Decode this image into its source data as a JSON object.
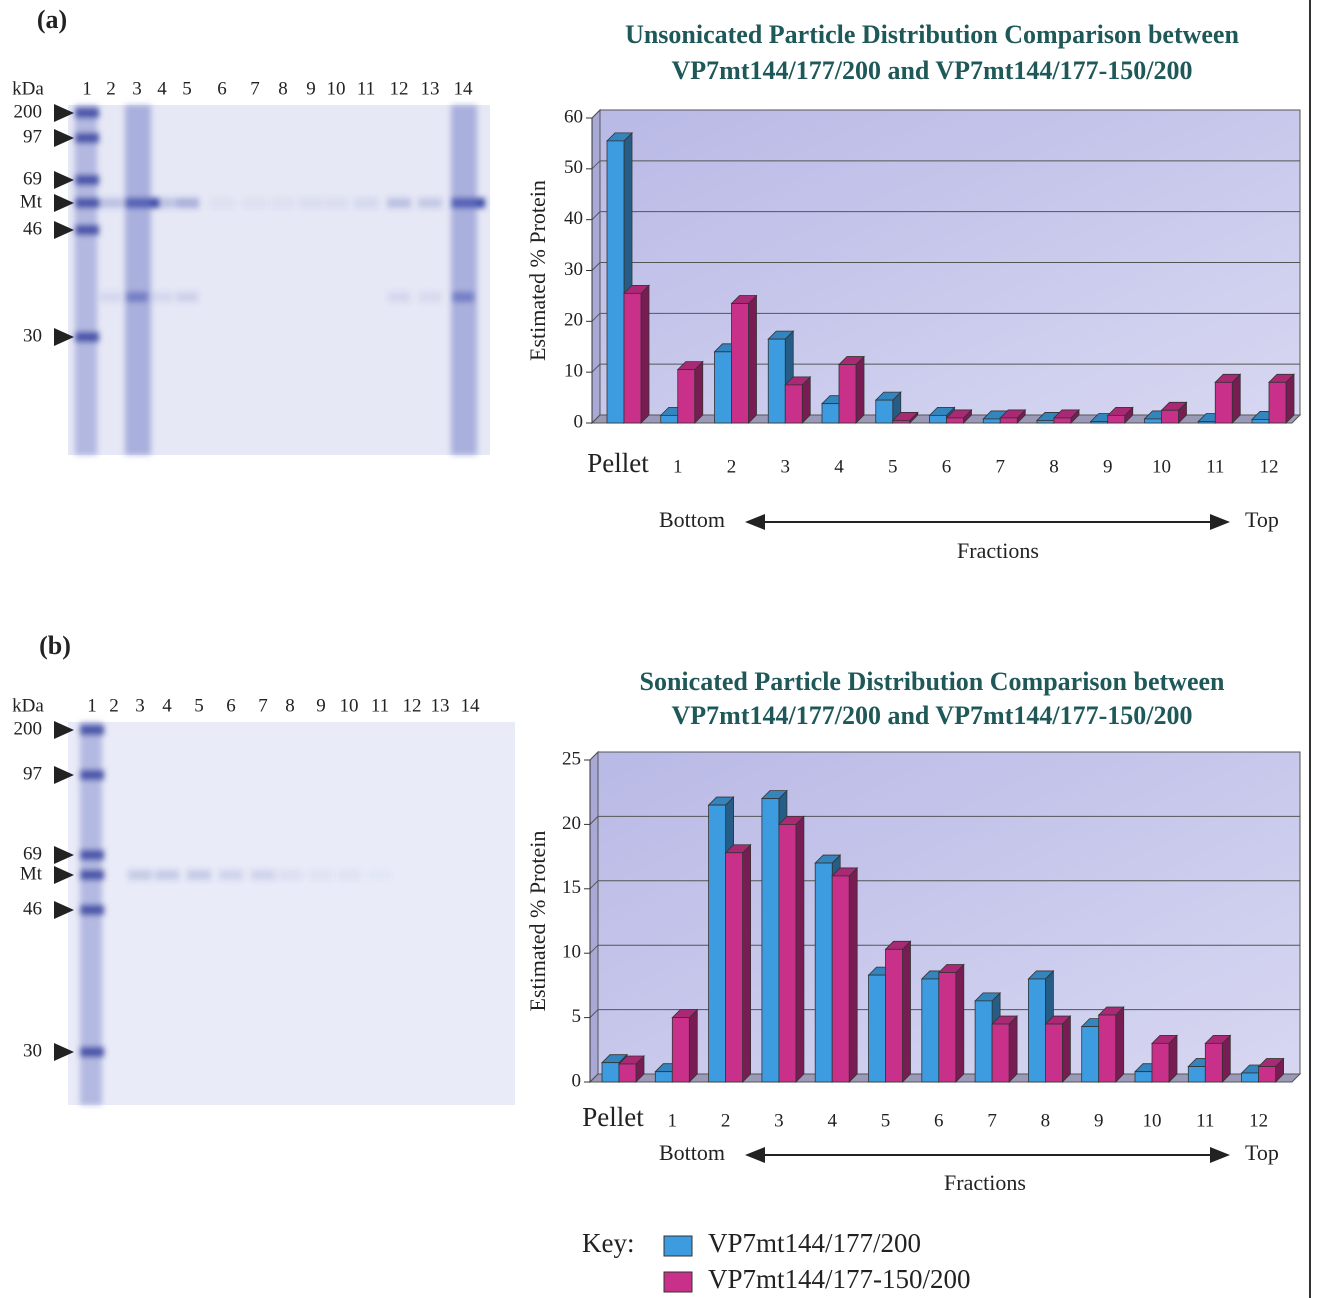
{
  "panels": [
    "(a)",
    "(b)"
  ],
  "gels": [
    {
      "unit": "kDa",
      "lanes": [
        "1",
        "2",
        "3",
        "4",
        "5",
        "6",
        "7",
        "8",
        "9",
        "10",
        "11",
        "12",
        "13",
        "14"
      ],
      "markers": [
        "200",
        "97",
        "69",
        "Mt",
        "46",
        "30"
      ]
    },
    {
      "unit": "kDa",
      "lanes": [
        "1",
        "2",
        "3",
        "4",
        "5",
        "6",
        "7",
        "8",
        "9",
        "10",
        "11",
        "12",
        "13",
        "14"
      ],
      "markers": [
        "200",
        "97",
        "69",
        "Mt",
        "46",
        "30"
      ]
    }
  ],
  "chart_data": [
    {
      "type": "bar3d",
      "title": [
        "Unsonicated Particle Distribution Comparison between",
        "VP7mt144/177/200 and VP7mt144/177-150/200"
      ],
      "ylabel": "Estimated % Protein",
      "xlabel": "Fractions",
      "annotations": [
        "Bottom",
        "Top"
      ],
      "categories": [
        "Pellet",
        "1",
        "2",
        "3",
        "4",
        "5",
        "6",
        "7",
        "8",
        "9",
        "10",
        "11",
        "12"
      ],
      "series": [
        {
          "color": "#3d9be0",
          "values": [
            55.5,
            1.5,
            14,
            16.5,
            3.8,
            4.5,
            1.5,
            0.8,
            0.5,
            0.3,
            0.8,
            0.3,
            0.7
          ]
        },
        {
          "color": "#c8308a",
          "values": [
            25.5,
            10.5,
            23.5,
            7.5,
            11.5,
            0.5,
            1,
            1,
            1,
            1.5,
            2.5,
            8,
            8
          ]
        }
      ],
      "ylim": [
        0,
        60
      ],
      "yticks": [
        0,
        10,
        20,
        30,
        40,
        50,
        60
      ],
      "grid": true
    },
    {
      "type": "bar3d",
      "title": [
        "Sonicated Particle Distribution Comparison between",
        "VP7mt144/177/200 and VP7mt144/177-150/200"
      ],
      "ylabel": "Estimated % Protein",
      "xlabel": "Fractions",
      "annotations": [
        "Bottom",
        "Top"
      ],
      "categories": [
        "Pellet",
        "1",
        "2",
        "3",
        "4",
        "5",
        "6",
        "7",
        "8",
        "9",
        "10",
        "11",
        "12"
      ],
      "series": [
        {
          "name": "VP7mt144/177/200",
          "color": "#3d9be0",
          "values": [
            1.5,
            0.8,
            21.5,
            22,
            17,
            8.3,
            8,
            6.3,
            8,
            4.3,
            0.8,
            1.2,
            0.7
          ]
        },
        {
          "name": "VP7mt144/177-150/200",
          "color": "#c8308a",
          "values": [
            1.4,
            5,
            17.8,
            20,
            16,
            10.3,
            8.5,
            4.5,
            4.5,
            5.2,
            3,
            3,
            1.2
          ]
        }
      ],
      "ylim": [
        0,
        25
      ],
      "yticks": [
        0,
        5,
        10,
        15,
        20,
        25
      ],
      "grid": true,
      "legend_title": "Key:"
    }
  ]
}
